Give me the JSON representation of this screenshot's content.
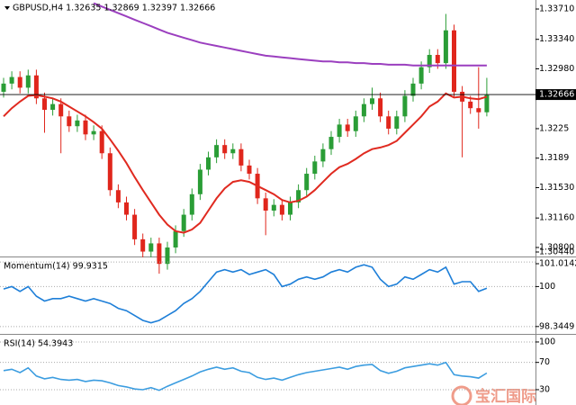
{
  "chart_data": [
    {
      "type": "candlestick",
      "title": "GBPUSD,H4  1.32635 1.32869 1.32397 1.32666",
      "open": [
        1.327,
        1.328,
        1.3288,
        1.3275,
        1.329,
        1.3262,
        1.3248,
        1.3255,
        1.324,
        1.3228,
        1.3235,
        1.3218,
        1.3222,
        1.3195,
        1.315,
        1.3135,
        1.312,
        1.309,
        1.3075,
        1.3085,
        1.306,
        1.308,
        1.31,
        1.312,
        1.3145,
        1.3175,
        1.319,
        1.3205,
        1.3195,
        1.32,
        1.318,
        1.317,
        1.314,
        1.3125,
        1.3132,
        1.312,
        1.3135,
        1.315,
        1.317,
        1.3185,
        1.32,
        1.3215,
        1.323,
        1.3222,
        1.324,
        1.3255,
        1.3262,
        1.324,
        1.3225,
        1.324,
        1.3265,
        1.328,
        1.33,
        1.3315,
        1.3305,
        1.3345,
        1.327,
        1.3258,
        1.325,
        1.3245
      ],
      "high": [
        1.3287,
        1.3295,
        1.3295,
        1.3297,
        1.3297,
        1.3269,
        1.3262,
        1.3262,
        1.3247,
        1.3242,
        1.3242,
        1.3229,
        1.3229,
        1.3202,
        1.3157,
        1.3142,
        1.3127,
        1.3097,
        1.3092,
        1.3092,
        1.3087,
        1.3107,
        1.3127,
        1.3152,
        1.3182,
        1.3197,
        1.3212,
        1.3212,
        1.3207,
        1.3207,
        1.3187,
        1.3177,
        1.3147,
        1.3139,
        1.3139,
        1.3142,
        1.3157,
        1.3177,
        1.3192,
        1.3207,
        1.3222,
        1.3237,
        1.3237,
        1.3247,
        1.3262,
        1.3275,
        1.3269,
        1.3247,
        1.3247,
        1.3272,
        1.3287,
        1.3307,
        1.3322,
        1.3322,
        1.3365,
        1.3352,
        1.3277,
        1.3265,
        1.33,
        1.3287
      ],
      "low": [
        1.3263,
        1.3273,
        1.3268,
        1.3268,
        1.3255,
        1.322,
        1.3241,
        1.3195,
        1.3221,
        1.3221,
        1.3211,
        1.3211,
        1.3188,
        1.3143,
        1.3128,
        1.3113,
        1.3083,
        1.3068,
        1.3068,
        1.3048,
        1.3053,
        1.3073,
        1.3093,
        1.3113,
        1.3138,
        1.3168,
        1.3183,
        1.3188,
        1.3188,
        1.3173,
        1.3163,
        1.3133,
        1.3095,
        1.3118,
        1.3113,
        1.3113,
        1.3128,
        1.3143,
        1.3163,
        1.3178,
        1.3193,
        1.3208,
        1.3215,
        1.3215,
        1.3233,
        1.3248,
        1.3233,
        1.3218,
        1.3218,
        1.3233,
        1.3258,
        1.3273,
        1.3293,
        1.3298,
        1.3298,
        1.3263,
        1.319,
        1.3243,
        1.3225,
        1.324
      ],
      "close": [
        1.328,
        1.3288,
        1.3275,
        1.329,
        1.3262,
        1.3248,
        1.3255,
        1.324,
        1.3228,
        1.3235,
        1.3218,
        1.3222,
        1.3195,
        1.315,
        1.3135,
        1.312,
        1.309,
        1.3075,
        1.3085,
        1.306,
        1.308,
        1.31,
        1.312,
        1.3145,
        1.3175,
        1.319,
        1.3205,
        1.3195,
        1.32,
        1.318,
        1.317,
        1.314,
        1.3125,
        1.3132,
        1.312,
        1.3135,
        1.315,
        1.317,
        1.3185,
        1.32,
        1.3215,
        1.323,
        1.3222,
        1.324,
        1.3255,
        1.3262,
        1.324,
        1.3225,
        1.324,
        1.3265,
        1.328,
        1.33,
        1.3315,
        1.3305,
        1.3345,
        1.327,
        1.3258,
        1.325,
        1.3245,
        1.3266
      ],
      "up_color": "#2a9d36",
      "down_color": "#e0261c",
      "overlays": [
        {
          "color": "#e02a20",
          "values": [
            1.324,
            1.325,
            1.3258,
            1.3265,
            1.3266,
            1.3264,
            1.3262,
            1.3258,
            1.3252,
            1.3246,
            1.324,
            1.3233,
            1.3225,
            1.3212,
            1.3198,
            1.3183,
            1.3166,
            1.315,
            1.3135,
            1.312,
            1.3108,
            1.31,
            1.3098,
            1.3102,
            1.311,
            1.3125,
            1.314,
            1.3152,
            1.316,
            1.3162,
            1.316,
            1.3155,
            1.315,
            1.3145,
            1.3138,
            1.3135,
            1.3137,
            1.3142,
            1.315,
            1.316,
            1.317,
            1.3178,
            1.3182,
            1.3188,
            1.3195,
            1.32,
            1.3202,
            1.3205,
            1.321,
            1.322,
            1.323,
            1.324,
            1.3252,
            1.3258,
            1.3268,
            1.3263,
            1.3264,
            1.3262,
            1.3261,
            1.3264
          ]
        },
        {
          "color": "#9b3fbf",
          "values": [
            null,
            null,
            null,
            null,
            null,
            null,
            null,
            null,
            null,
            null,
            null,
            1.3378,
            1.3374,
            1.337,
            1.3366,
            1.3362,
            1.3358,
            1.3354,
            1.335,
            1.3346,
            1.3342,
            1.3339,
            1.3336,
            1.3333,
            1.333,
            1.3328,
            1.3326,
            1.3324,
            1.3322,
            1.332,
            1.3318,
            1.3316,
            1.3314,
            1.3313,
            1.3312,
            1.3311,
            1.331,
            1.3309,
            1.3308,
            1.3307,
            1.3307,
            1.3306,
            1.3306,
            1.3305,
            1.3305,
            1.3304,
            1.3304,
            1.3303,
            1.3303,
            1.3303,
            1.3302,
            1.3302,
            1.3302,
            1.3302,
            1.3302,
            1.3302,
            1.3302,
            1.3302,
            1.3302,
            1.3302
          ]
        }
      ],
      "current_price": 1.32666,
      "ylim": [
        1.3069,
        1.3382
      ],
      "yticks": [
        {
          "value": 1.3371,
          "label": "1.33710"
        },
        {
          "value": 1.3334,
          "label": "1.33340"
        },
        {
          "value": 1.3298,
          "label": "1.32980"
        },
        1.3225,
        1.3189,
        {
          "value": 1.3153,
          "label": "1.31530"
        },
        {
          "value": 1.3116,
          "label": "1.31160"
        },
        {
          "value": 1.308,
          "label": "1.30800"
        },
        {
          "value": 1.3044,
          "label": "1.30440"
        }
      ],
      "grid": false
    },
    {
      "type": "line",
      "title": "Momentum(14) 99.9315",
      "color": "#1e7fd8",
      "values": [
        99.9,
        100.0,
        99.8,
        100.0,
        99.6,
        99.4,
        99.5,
        99.5,
        99.6,
        99.5,
        99.4,
        99.5,
        99.4,
        99.3,
        99.1,
        99.0,
        98.8,
        98.6,
        98.5,
        98.6,
        98.8,
        99.0,
        99.3,
        99.5,
        99.8,
        100.2,
        100.6,
        100.7,
        100.6,
        100.7,
        100.5,
        100.6,
        100.7,
        100.5,
        100.0,
        100.1,
        100.3,
        100.4,
        100.3,
        100.4,
        100.6,
        100.7,
        100.6,
        100.8,
        100.9,
        100.8,
        100.3,
        100.0,
        100.1,
        100.4,
        100.3,
        100.5,
        100.7,
        100.6,
        100.8,
        100.1,
        100.2,
        100.2,
        99.8,
        99.9315
      ],
      "ylim": [
        98.04,
        101.17
      ],
      "yticks": [
        101.0142,
        100,
        98.3449
      ],
      "grid": true
    },
    {
      "type": "line",
      "title": "RSI(14) 54.3943",
      "color": "#3c9de0",
      "values": [
        58,
        60,
        55,
        62,
        50,
        46,
        48,
        45,
        44,
        45,
        42,
        44,
        43,
        40,
        36,
        34,
        31,
        30,
        33,
        29,
        35,
        40,
        45,
        50,
        56,
        60,
        63,
        60,
        62,
        57,
        55,
        48,
        45,
        47,
        44,
        48,
        52,
        55,
        57,
        59,
        61,
        63,
        60,
        64,
        66,
        67,
        58,
        54,
        57,
        62,
        64,
        66,
        68,
        66,
        70,
        52,
        50,
        49,
        47,
        54.3943
      ],
      "ylim": [
        7.5,
        109.2
      ],
      "yticks": [
        100,
        70,
        30
      ],
      "grid": true
    }
  ],
  "watermark": "宝汇国际"
}
